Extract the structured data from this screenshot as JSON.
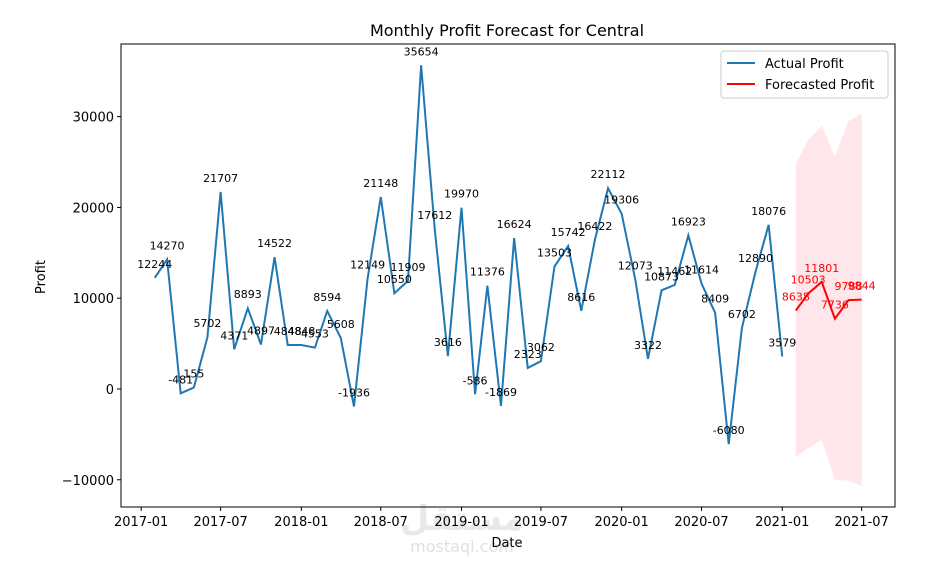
{
  "chart_data": {
    "type": "line",
    "title": "Monthly Profit Forecast for Central",
    "xlabel": "Date",
    "ylabel": "Profit",
    "xlim": [
      "2016-11-16",
      "2021-09-15"
    ],
    "ylim": [
      -13000,
      38000
    ],
    "yticks": [
      -10000,
      0,
      10000,
      20000,
      30000
    ],
    "ytick_labels": [
      "−10000",
      "0",
      "10000",
      "20000",
      "30000"
    ],
    "xticks": [
      "2017-01",
      "2017-07",
      "2018-01",
      "2018-07",
      "2019-01",
      "2019-07",
      "2020-01",
      "2020-07",
      "2021-01",
      "2021-07"
    ],
    "legend": {
      "position": "top-right",
      "entries": [
        "Actual Profit",
        "Forecasted Profit"
      ]
    },
    "colors": {
      "actual": "#1f77b4",
      "forecast": "#ff0000",
      "band": "#ffc0cb"
    },
    "series": [
      {
        "name": "Actual Profit",
        "x": [
          "2017-02",
          "2017-03",
          "2017-04",
          "2017-05",
          "2017-06",
          "2017-07",
          "2017-08",
          "2017-09",
          "2017-10",
          "2017-11",
          "2017-12",
          "2018-01",
          "2018-02",
          "2018-03",
          "2018-04",
          "2018-05",
          "2018-06",
          "2018-07",
          "2018-08",
          "2018-09",
          "2018-10",
          "2018-11",
          "2018-12",
          "2019-01",
          "2019-02",
          "2019-03",
          "2019-04",
          "2019-05",
          "2019-06",
          "2019-07",
          "2019-08",
          "2019-09",
          "2019-10",
          "2019-11",
          "2019-12",
          "2020-01",
          "2020-02",
          "2020-03",
          "2020-04",
          "2020-05",
          "2020-06",
          "2020-07",
          "2020-08",
          "2020-09",
          "2020-10",
          "2020-11",
          "2020-12",
          "2021-01"
        ],
        "values": [
          12244,
          14270,
          -481,
          155,
          5702,
          21707,
          4371,
          8893,
          4897,
          14522,
          4848,
          4848,
          4553,
          8594,
          5608,
          -1936,
          12149,
          21148,
          10550,
          11909,
          35654,
          17612,
          3616,
          19970,
          -586,
          11376,
          -1869,
          16624,
          2323,
          3062,
          13503,
          15742,
          8616,
          16422,
          22112,
          19306,
          12073,
          3322,
          10873,
          11462,
          16923,
          11614,
          8409,
          -6080,
          6702,
          12890,
          18076,
          3579
        ]
      },
      {
        "name": "Forecasted Profit",
        "x": [
          "2021-02",
          "2021-03",
          "2021-04",
          "2021-05",
          "2021-06",
          "2021-07"
        ],
        "values": [
          8638,
          10503,
          11801,
          7736,
          9788,
          9844
        ],
        "lower": [
          -7500,
          -6500,
          -5600,
          -10000,
          -10100,
          -10700
        ],
        "upper": [
          24800,
          27400,
          29000,
          25600,
          29500,
          30300
        ]
      }
    ]
  },
  "watermark": {
    "arabic": "مستقل",
    "latin": "mostaql.com"
  }
}
